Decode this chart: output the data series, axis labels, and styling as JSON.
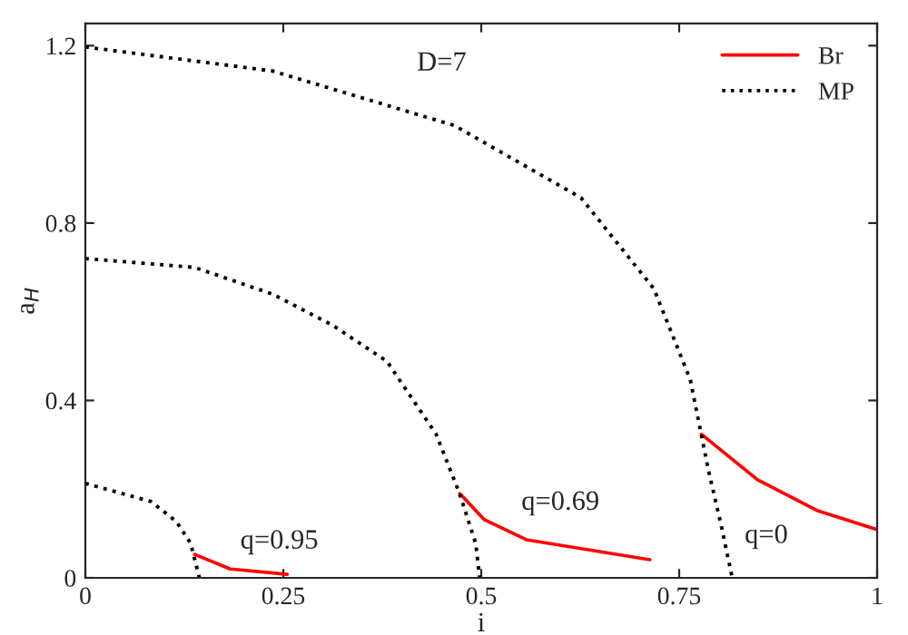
{
  "chart_data": {
    "type": "line",
    "xlabel": "i",
    "ylabel": "a$_{H}$",
    "xlim": [
      0,
      1
    ],
    "ylim": [
      0,
      1.25
    ],
    "xticks": [
      0,
      0.25,
      0.5,
      0.75,
      1
    ],
    "yticks": [
      0,
      0.4,
      0.8,
      1.2
    ],
    "grid": false,
    "legend": "top right",
    "series": [
      {
        "name": "Br",
        "color": "#ff0000",
        "line_style": "solid",
        "x": [
          0.138,
          0.183,
          0.255
        ],
        "values": [
          0.053,
          0.02,
          0.008
        ]
      },
      {
        "color": "#ff0000",
        "line_style": "solid",
        "x": [
          0.473,
          0.504,
          0.557,
          0.713
        ],
        "values": [
          0.19,
          0.131,
          0.086,
          0.041
        ]
      },
      {
        "color": "#ff0000",
        "line_style": "solid",
        "x": [
          0.778,
          0.849,
          0.924,
          0.998
        ],
        "values": [
          0.324,
          0.221,
          0.152,
          0.11
        ]
      },
      {
        "name": "MP",
        "color": "#000000",
        "line_style": "dotted",
        "x": [
          0,
          0.138,
          0.236,
          0.312,
          0.381,
          0.443,
          0.472,
          0.493,
          0.498
        ],
        "values": [
          0.72,
          0.7,
          0.64,
          0.57,
          0.488,
          0.324,
          0.193,
          0.078,
          0
        ]
      },
      {
        "color": "#000000",
        "line_style": "dotted",
        "x": [
          0,
          0.236,
          0.466,
          0.626,
          0.718,
          0.764,
          0.787,
          0.803,
          0.817
        ],
        "values": [
          1.197,
          1.143,
          1.02,
          0.857,
          0.652,
          0.447,
          0.242,
          0.119,
          0
        ]
      },
      {
        "color": "#000000",
        "line_style": "dotted",
        "x": [
          0,
          0.083,
          0.115,
          0.133,
          0.144
        ],
        "values": [
          0.213,
          0.172,
          0.127,
          0.078,
          0
        ]
      }
    ],
    "annotations": [
      "D=7",
      "q=0.95",
      "q=0.69",
      "q=0"
    ]
  }
}
